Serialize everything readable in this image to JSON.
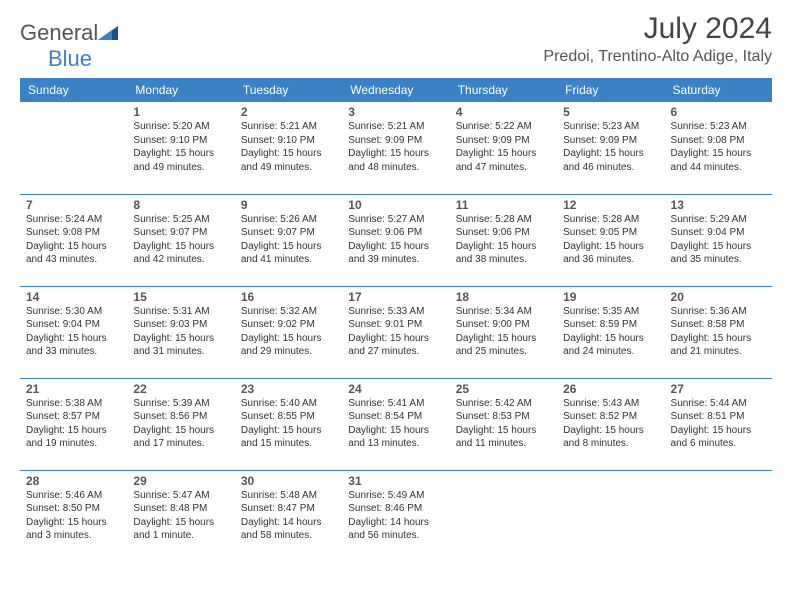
{
  "brand": {
    "name_part1": "General",
    "name_part2": "Blue"
  },
  "title": "July 2024",
  "location": "Predoi, Trentino-Alto Adige, Italy",
  "day_headers": [
    "Sunday",
    "Monday",
    "Tuesday",
    "Wednesday",
    "Thursday",
    "Friday",
    "Saturday"
  ],
  "colors": {
    "header_bg": "#3b82c4",
    "header_fg": "#ffffff",
    "rule": "#3b82c4"
  },
  "weeks": [
    [
      null,
      {
        "n": "1",
        "sr": "Sunrise: 5:20 AM",
        "ss": "Sunset: 9:10 PM",
        "dl": "Daylight: 15 hours and 49 minutes."
      },
      {
        "n": "2",
        "sr": "Sunrise: 5:21 AM",
        "ss": "Sunset: 9:10 PM",
        "dl": "Daylight: 15 hours and 49 minutes."
      },
      {
        "n": "3",
        "sr": "Sunrise: 5:21 AM",
        "ss": "Sunset: 9:09 PM",
        "dl": "Daylight: 15 hours and 48 minutes."
      },
      {
        "n": "4",
        "sr": "Sunrise: 5:22 AM",
        "ss": "Sunset: 9:09 PM",
        "dl": "Daylight: 15 hours and 47 minutes."
      },
      {
        "n": "5",
        "sr": "Sunrise: 5:23 AM",
        "ss": "Sunset: 9:09 PM",
        "dl": "Daylight: 15 hours and 46 minutes."
      },
      {
        "n": "6",
        "sr": "Sunrise: 5:23 AM",
        "ss": "Sunset: 9:08 PM",
        "dl": "Daylight: 15 hours and 44 minutes."
      }
    ],
    [
      {
        "n": "7",
        "sr": "Sunrise: 5:24 AM",
        "ss": "Sunset: 9:08 PM",
        "dl": "Daylight: 15 hours and 43 minutes."
      },
      {
        "n": "8",
        "sr": "Sunrise: 5:25 AM",
        "ss": "Sunset: 9:07 PM",
        "dl": "Daylight: 15 hours and 42 minutes."
      },
      {
        "n": "9",
        "sr": "Sunrise: 5:26 AM",
        "ss": "Sunset: 9:07 PM",
        "dl": "Daylight: 15 hours and 41 minutes."
      },
      {
        "n": "10",
        "sr": "Sunrise: 5:27 AM",
        "ss": "Sunset: 9:06 PM",
        "dl": "Daylight: 15 hours and 39 minutes."
      },
      {
        "n": "11",
        "sr": "Sunrise: 5:28 AM",
        "ss": "Sunset: 9:06 PM",
        "dl": "Daylight: 15 hours and 38 minutes."
      },
      {
        "n": "12",
        "sr": "Sunrise: 5:28 AM",
        "ss": "Sunset: 9:05 PM",
        "dl": "Daylight: 15 hours and 36 minutes."
      },
      {
        "n": "13",
        "sr": "Sunrise: 5:29 AM",
        "ss": "Sunset: 9:04 PM",
        "dl": "Daylight: 15 hours and 35 minutes."
      }
    ],
    [
      {
        "n": "14",
        "sr": "Sunrise: 5:30 AM",
        "ss": "Sunset: 9:04 PM",
        "dl": "Daylight: 15 hours and 33 minutes."
      },
      {
        "n": "15",
        "sr": "Sunrise: 5:31 AM",
        "ss": "Sunset: 9:03 PM",
        "dl": "Daylight: 15 hours and 31 minutes."
      },
      {
        "n": "16",
        "sr": "Sunrise: 5:32 AM",
        "ss": "Sunset: 9:02 PM",
        "dl": "Daylight: 15 hours and 29 minutes."
      },
      {
        "n": "17",
        "sr": "Sunrise: 5:33 AM",
        "ss": "Sunset: 9:01 PM",
        "dl": "Daylight: 15 hours and 27 minutes."
      },
      {
        "n": "18",
        "sr": "Sunrise: 5:34 AM",
        "ss": "Sunset: 9:00 PM",
        "dl": "Daylight: 15 hours and 25 minutes."
      },
      {
        "n": "19",
        "sr": "Sunrise: 5:35 AM",
        "ss": "Sunset: 8:59 PM",
        "dl": "Daylight: 15 hours and 24 minutes."
      },
      {
        "n": "20",
        "sr": "Sunrise: 5:36 AM",
        "ss": "Sunset: 8:58 PM",
        "dl": "Daylight: 15 hours and 21 minutes."
      }
    ],
    [
      {
        "n": "21",
        "sr": "Sunrise: 5:38 AM",
        "ss": "Sunset: 8:57 PM",
        "dl": "Daylight: 15 hours and 19 minutes."
      },
      {
        "n": "22",
        "sr": "Sunrise: 5:39 AM",
        "ss": "Sunset: 8:56 PM",
        "dl": "Daylight: 15 hours and 17 minutes."
      },
      {
        "n": "23",
        "sr": "Sunrise: 5:40 AM",
        "ss": "Sunset: 8:55 PM",
        "dl": "Daylight: 15 hours and 15 minutes."
      },
      {
        "n": "24",
        "sr": "Sunrise: 5:41 AM",
        "ss": "Sunset: 8:54 PM",
        "dl": "Daylight: 15 hours and 13 minutes."
      },
      {
        "n": "25",
        "sr": "Sunrise: 5:42 AM",
        "ss": "Sunset: 8:53 PM",
        "dl": "Daylight: 15 hours and 11 minutes."
      },
      {
        "n": "26",
        "sr": "Sunrise: 5:43 AM",
        "ss": "Sunset: 8:52 PM",
        "dl": "Daylight: 15 hours and 8 minutes."
      },
      {
        "n": "27",
        "sr": "Sunrise: 5:44 AM",
        "ss": "Sunset: 8:51 PM",
        "dl": "Daylight: 15 hours and 6 minutes."
      }
    ],
    [
      {
        "n": "28",
        "sr": "Sunrise: 5:46 AM",
        "ss": "Sunset: 8:50 PM",
        "dl": "Daylight: 15 hours and 3 minutes."
      },
      {
        "n": "29",
        "sr": "Sunrise: 5:47 AM",
        "ss": "Sunset: 8:48 PM",
        "dl": "Daylight: 15 hours and 1 minute."
      },
      {
        "n": "30",
        "sr": "Sunrise: 5:48 AM",
        "ss": "Sunset: 8:47 PM",
        "dl": "Daylight: 14 hours and 58 minutes."
      },
      {
        "n": "31",
        "sr": "Sunrise: 5:49 AM",
        "ss": "Sunset: 8:46 PM",
        "dl": "Daylight: 14 hours and 56 minutes."
      },
      null,
      null,
      null
    ]
  ]
}
